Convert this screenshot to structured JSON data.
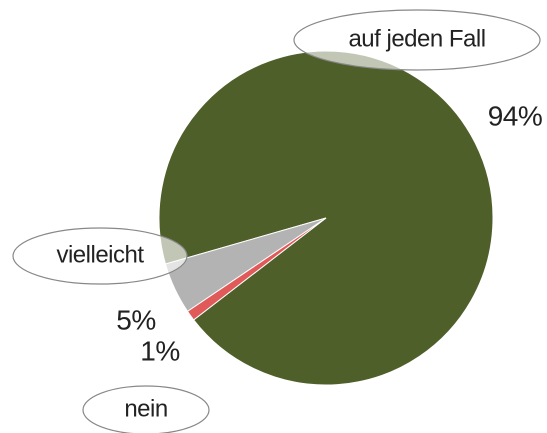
{
  "chart_data": {
    "type": "pie",
    "categories": [
      "auf jeden Fall",
      "vielleicht",
      "nein"
    ],
    "values": [
      94,
      5,
      1
    ],
    "value_labels": [
      "94%",
      "5%",
      "1%"
    ],
    "colors": [
      "#4f5f2a",
      "#b3b3b3",
      "#e05a5a"
    ]
  }
}
